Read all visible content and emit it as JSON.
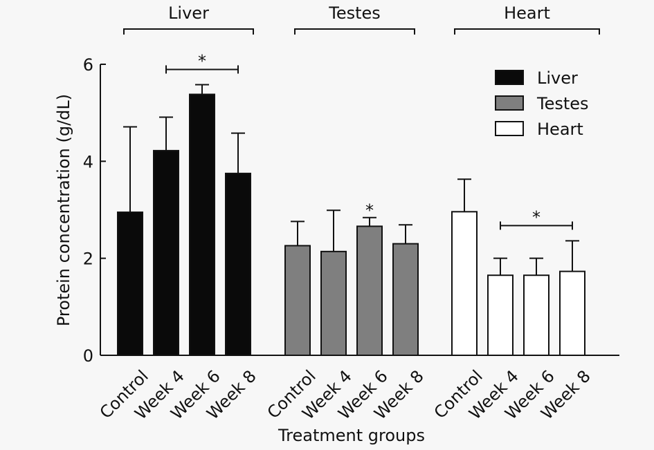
{
  "chart_data": {
    "type": "bar",
    "title": "",
    "xlabel": "Treatment groups",
    "ylabel": "Protein concentration (g/dL)",
    "ylim": [
      0,
      6
    ],
    "yticks": [
      0,
      2,
      4,
      6
    ],
    "grid": false,
    "legend_position": "top-right",
    "categories": [
      "Control",
      "Week 4",
      "Week 6",
      "Week 8"
    ],
    "series": [
      {
        "name": "Liver",
        "color": "#0a0a0a",
        "values": [
          2.95,
          4.22,
          5.38,
          3.75
        ],
        "error_upper": [
          4.71,
          4.91,
          5.58,
          4.58
        ]
      },
      {
        "name": "Testes",
        "color": "#7f7f7f",
        "values": [
          2.26,
          2.14,
          2.66,
          2.3
        ],
        "error_upper": [
          2.76,
          2.99,
          2.84,
          2.69
        ]
      },
      {
        "name": "Heart",
        "color": "#ffffff",
        "values": [
          2.96,
          1.65,
          1.65,
          1.73
        ],
        "error_upper": [
          3.63,
          2.0,
          2.0,
          2.36
        ]
      }
    ],
    "group_labels": [
      "Liver",
      "Testes",
      "Heart"
    ],
    "annotations": [
      {
        "type": "significance-bracket",
        "series": "Liver",
        "from": "Week 4",
        "to": "Week 8",
        "text": "*"
      },
      {
        "type": "significance-star",
        "series": "Testes",
        "at": "Week 6",
        "text": "*"
      },
      {
        "type": "significance-bracket",
        "series": "Heart",
        "from": "Week 4",
        "to": "Week 8",
        "text": "*"
      }
    ]
  }
}
